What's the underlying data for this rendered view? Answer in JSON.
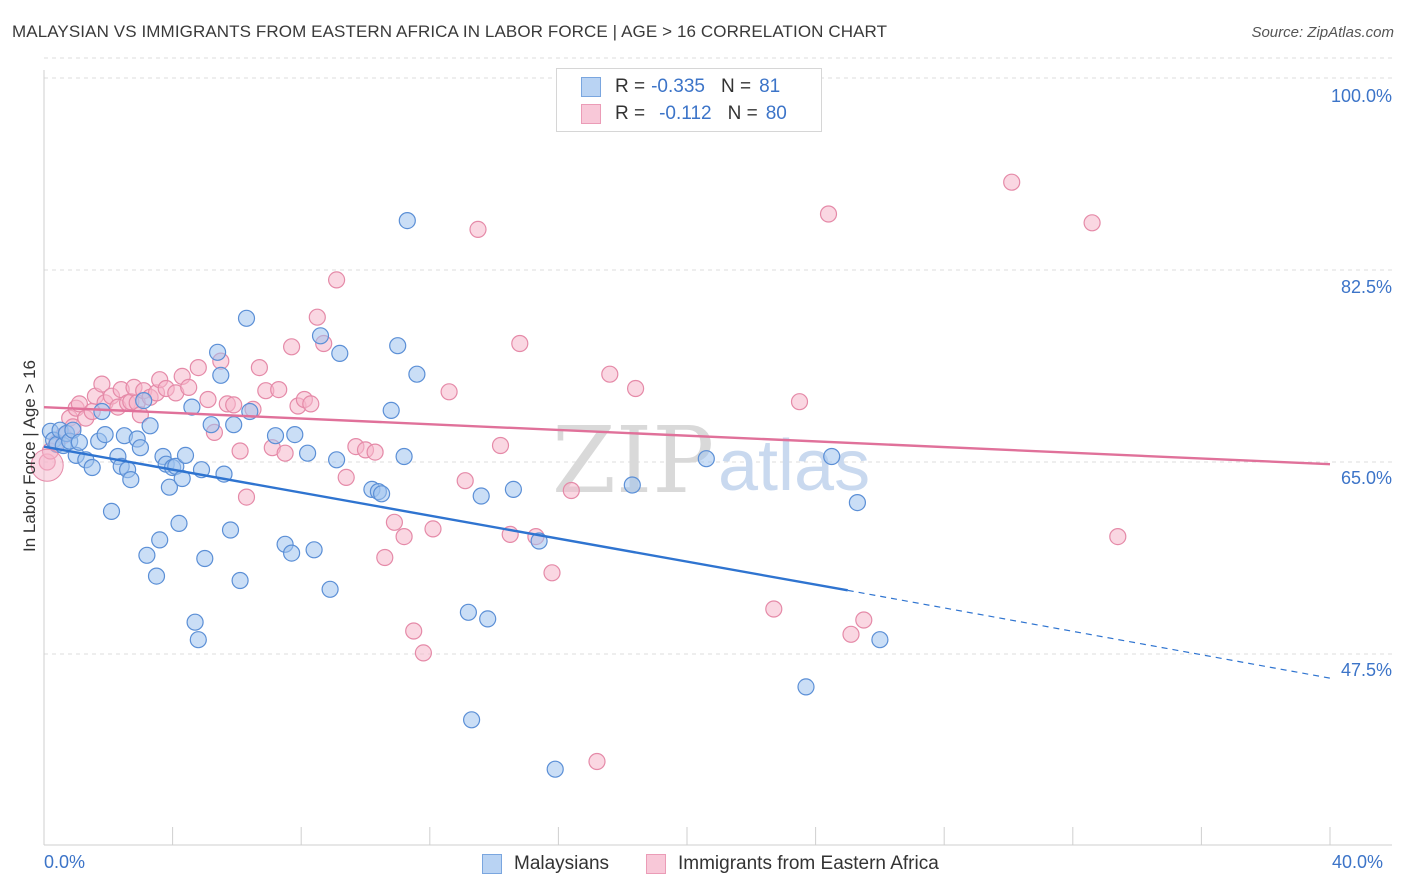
{
  "title": "MALAYSIAN VS IMMIGRANTS FROM EASTERN AFRICA IN LABOR FORCE | AGE > 16 CORRELATION CHART",
  "source": "Source: ZipAtlas.com",
  "watermark": {
    "zip": "ZIP",
    "atlas": "atlas"
  },
  "legend": {
    "r_label": "R =",
    "n_label": "N =",
    "rows": [
      {
        "r": "-0.335",
        "n": "81"
      },
      {
        "r": "-0.112",
        "n": "80"
      }
    ]
  },
  "colors": {
    "malaysians_fill": "#9ec3ee",
    "malaysians_stroke": "#5b8fd6",
    "malaysians_line": "#2f74d0",
    "eastafrica_fill": "#f6b6cb",
    "eastafrica_stroke": "#e58aa8",
    "eastafrica_line": "#e0719a",
    "axis_text": "#3c74c8",
    "grid": "#dddddd"
  },
  "chart_data": {
    "type": "scatter",
    "title": "MALAYSIAN VS IMMIGRANTS FROM EASTERN AFRICA IN LABOR FORCE | AGE > 16 CORRELATION CHART",
    "xlabel": "",
    "ylabel": "In Labor Force | Age > 16",
    "xlim": [
      0,
      40
    ],
    "ylim": [
      31,
      102
    ],
    "x_tick_labels": [
      "0.0%",
      "40.0%"
    ],
    "y_ticks": [
      47.5,
      65.0,
      82.5,
      100.0
    ],
    "y_tick_labels": [
      "47.5%",
      "65.0%",
      "82.5%",
      "100.0%"
    ],
    "grid": true,
    "series": [
      {
        "name": "Malaysians",
        "r": -0.335,
        "n": 81,
        "trend": {
          "x0": 0,
          "y0": 66.4,
          "x1": 25.0,
          "y1": 53.3,
          "dashed_to_x": 40,
          "dashed_to_y": 45.3
        },
        "points": [
          [
            0.2,
            67.8
          ],
          [
            0.3,
            67.0
          ],
          [
            0.4,
            66.6
          ],
          [
            0.5,
            67.9
          ],
          [
            0.6,
            66.5
          ],
          [
            0.7,
            67.6
          ],
          [
            0.8,
            66.9
          ],
          [
            0.9,
            67.9
          ],
          [
            1.0,
            65.6
          ],
          [
            1.1,
            66.8
          ],
          [
            1.3,
            65.2
          ],
          [
            1.5,
            64.5
          ],
          [
            1.7,
            66.9
          ],
          [
            1.8,
            69.6
          ],
          [
            1.9,
            67.5
          ],
          [
            2.1,
            60.5
          ],
          [
            2.3,
            65.5
          ],
          [
            2.4,
            64.6
          ],
          [
            2.5,
            67.4
          ],
          [
            2.6,
            64.3
          ],
          [
            2.7,
            63.4
          ],
          [
            2.9,
            67.1
          ],
          [
            3.0,
            66.3
          ],
          [
            3.1,
            70.6
          ],
          [
            3.2,
            56.5
          ],
          [
            3.3,
            68.3
          ],
          [
            3.5,
            54.6
          ],
          [
            3.6,
            57.9
          ],
          [
            3.7,
            65.5
          ],
          [
            3.8,
            64.8
          ],
          [
            3.9,
            62.7
          ],
          [
            4.0,
            64.5
          ],
          [
            4.1,
            64.6
          ],
          [
            4.2,
            59.4
          ],
          [
            4.3,
            63.5
          ],
          [
            4.4,
            65.6
          ],
          [
            4.6,
            70.0
          ],
          [
            4.7,
            50.4
          ],
          [
            4.8,
            48.8
          ],
          [
            4.9,
            64.3
          ],
          [
            5.0,
            56.2
          ],
          [
            5.2,
            68.4
          ],
          [
            5.4,
            75.0
          ],
          [
            5.5,
            72.9
          ],
          [
            5.6,
            63.9
          ],
          [
            5.8,
            58.8
          ],
          [
            5.9,
            68.4
          ],
          [
            6.1,
            54.2
          ],
          [
            6.3,
            78.1
          ],
          [
            6.4,
            69.6
          ],
          [
            7.2,
            67.4
          ],
          [
            7.5,
            57.5
          ],
          [
            7.7,
            56.7
          ],
          [
            7.8,
            67.5
          ],
          [
            8.2,
            65.8
          ],
          [
            8.4,
            57.0
          ],
          [
            8.6,
            76.5
          ],
          [
            8.9,
            53.4
          ],
          [
            9.1,
            65.2
          ],
          [
            9.2,
            74.9
          ],
          [
            10.2,
            62.5
          ],
          [
            10.4,
            62.3
          ],
          [
            10.5,
            62.1
          ],
          [
            10.8,
            69.7
          ],
          [
            11.0,
            75.6
          ],
          [
            11.2,
            65.5
          ],
          [
            11.3,
            87.0
          ],
          [
            11.6,
            73.0
          ],
          [
            13.2,
            51.3
          ],
          [
            13.3,
            41.5
          ],
          [
            13.6,
            61.9
          ],
          [
            13.8,
            50.7
          ],
          [
            14.6,
            62.5
          ],
          [
            15.4,
            57.8
          ],
          [
            15.9,
            37.0
          ],
          [
            18.3,
            62.9
          ],
          [
            20.6,
            65.3
          ],
          [
            23.7,
            44.5
          ],
          [
            24.5,
            65.5
          ],
          [
            25.3,
            61.3
          ],
          [
            26.0,
            48.8
          ]
        ]
      },
      {
        "name": "Immigrants from Eastern Africa",
        "r": -0.112,
        "n": 80,
        "trend": {
          "x0": 0,
          "y0": 70.0,
          "x1": 40,
          "y1": 64.8
        },
        "points": [
          [
            0.1,
            65.0
          ],
          [
            0.2,
            66.0
          ],
          [
            0.4,
            66.8
          ],
          [
            0.6,
            67.4
          ],
          [
            0.8,
            69.0
          ],
          [
            0.9,
            68.2
          ],
          [
            1.0,
            69.9
          ],
          [
            1.1,
            70.3
          ],
          [
            1.3,
            69.0
          ],
          [
            1.5,
            69.6
          ],
          [
            1.6,
            71.0
          ],
          [
            1.8,
            72.1
          ],
          [
            1.9,
            70.4
          ],
          [
            2.1,
            71.0
          ],
          [
            2.3,
            70.0
          ],
          [
            2.4,
            71.6
          ],
          [
            2.6,
            70.4
          ],
          [
            2.7,
            70.5
          ],
          [
            2.8,
            71.8
          ],
          [
            2.9,
            70.4
          ],
          [
            3.0,
            69.3
          ],
          [
            3.1,
            71.5
          ],
          [
            3.3,
            70.9
          ],
          [
            3.5,
            71.3
          ],
          [
            3.6,
            72.5
          ],
          [
            3.8,
            71.7
          ],
          [
            4.1,
            71.3
          ],
          [
            4.3,
            72.8
          ],
          [
            4.5,
            71.8
          ],
          [
            4.8,
            73.6
          ],
          [
            5.1,
            70.7
          ],
          [
            5.3,
            67.7
          ],
          [
            5.5,
            74.2
          ],
          [
            5.7,
            70.3
          ],
          [
            5.9,
            70.2
          ],
          [
            6.1,
            66.0
          ],
          [
            6.3,
            61.8
          ],
          [
            6.5,
            69.8
          ],
          [
            6.7,
            73.6
          ],
          [
            6.9,
            71.5
          ],
          [
            7.1,
            66.3
          ],
          [
            7.3,
            71.6
          ],
          [
            7.5,
            65.8
          ],
          [
            7.7,
            75.5
          ],
          [
            7.9,
            70.1
          ],
          [
            8.1,
            70.7
          ],
          [
            8.3,
            70.3
          ],
          [
            8.5,
            78.2
          ],
          [
            8.7,
            75.8
          ],
          [
            9.1,
            81.6
          ],
          [
            9.4,
            63.6
          ],
          [
            9.7,
            66.4
          ],
          [
            10.0,
            66.1
          ],
          [
            10.3,
            65.9
          ],
          [
            10.6,
            56.3
          ],
          [
            10.9,
            59.5
          ],
          [
            11.2,
            58.2
          ],
          [
            11.5,
            49.6
          ],
          [
            11.8,
            47.6
          ],
          [
            12.1,
            58.9
          ],
          [
            12.6,
            71.4
          ],
          [
            13.1,
            63.3
          ],
          [
            13.5,
            86.2
          ],
          [
            14.2,
            66.5
          ],
          [
            14.5,
            58.4
          ],
          [
            14.8,
            75.8
          ],
          [
            15.3,
            58.2
          ],
          [
            15.8,
            54.9
          ],
          [
            16.4,
            62.4
          ],
          [
            17.2,
            37.7
          ],
          [
            17.6,
            73.0
          ],
          [
            18.4,
            71.7
          ],
          [
            22.7,
            51.6
          ],
          [
            23.5,
            70.5
          ],
          [
            24.4,
            87.6
          ],
          [
            25.1,
            49.3
          ],
          [
            25.5,
            50.6
          ],
          [
            30.1,
            90.5
          ],
          [
            32.6,
            86.8
          ],
          [
            33.4,
            58.2
          ]
        ]
      }
    ]
  },
  "axes": {
    "ylabel": "In Labor Force | Age > 16",
    "y_tick_labels": [
      "100.0%",
      "82.5%",
      "65.0%",
      "47.5%"
    ],
    "x_left": "0.0%",
    "x_right": "40.0%"
  },
  "bottom_legend": [
    "Malaysians",
    "Immigrants from Eastern Africa"
  ]
}
